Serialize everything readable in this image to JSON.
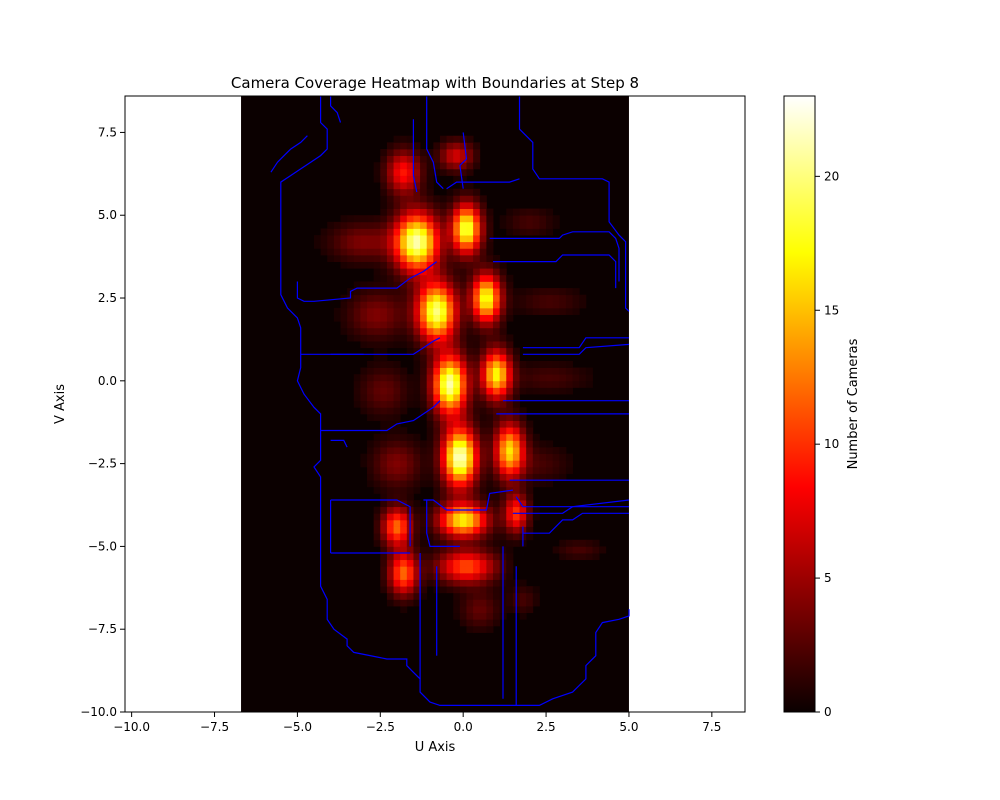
{
  "chart_data": {
    "type": "heatmap",
    "title": "Camera Coverage Heatmap with Boundaries at Step 8",
    "xlabel": "U Axis",
    "ylabel": "V Axis",
    "xlim": [
      -10.2,
      8.5
    ],
    "ylim": [
      -10.0,
      8.6
    ],
    "xticks": [
      -10.0,
      -7.5,
      -5.0,
      -2.5,
      0.0,
      2.5,
      5.0,
      7.5
    ],
    "yticks": [
      -10.0,
      -7.5,
      -5.0,
      -2.5,
      0.0,
      2.5,
      5.0,
      7.5
    ],
    "xtick_labels": [
      "−10.0",
      "−7.5",
      "−5.0",
      "−2.5",
      "0.0",
      "2.5",
      "5.0",
      "7.5"
    ],
    "ytick_labels": [
      "−10.0",
      "−7.5",
      "−5.0",
      "−2.5",
      "0.0",
      "2.5",
      "5.0",
      "7.5"
    ],
    "grid": false,
    "colormap": "hot",
    "colorbar": {
      "label": "Number of Cameras",
      "min": 0,
      "max": 23,
      "ticks": [
        0,
        5,
        10,
        15,
        20
      ],
      "tick_labels": [
        "0",
        "5",
        "10",
        "15",
        "20"
      ]
    },
    "heatmap_extent": {
      "u": [
        -6.7,
        5.0
      ],
      "v": [
        -10.0,
        8.6
      ]
    },
    "cell_size": 0.2,
    "hotspots": [
      {
        "u": -1.4,
        "v": 4.2,
        "peak": 21,
        "su": 0.45,
        "sv": 0.6
      },
      {
        "u": -1.8,
        "v": 6.3,
        "peak": 9,
        "su": 0.35,
        "sv": 0.45
      },
      {
        "u": -0.2,
        "v": 6.8,
        "peak": 7,
        "su": 0.35,
        "sv": 0.3
      },
      {
        "u": 0.1,
        "v": 4.6,
        "peak": 19,
        "su": 0.3,
        "sv": 0.5
      },
      {
        "u": -0.8,
        "v": 2.1,
        "peak": 20,
        "su": 0.4,
        "sv": 0.6
      },
      {
        "u": 0.7,
        "v": 2.5,
        "peak": 18,
        "su": 0.3,
        "sv": 0.5
      },
      {
        "u": -0.4,
        "v": -0.1,
        "peak": 21,
        "su": 0.35,
        "sv": 0.6
      },
      {
        "u": 1.0,
        "v": 0.2,
        "peak": 17,
        "su": 0.3,
        "sv": 0.5
      },
      {
        "u": -0.1,
        "v": -2.3,
        "peak": 22,
        "su": 0.35,
        "sv": 0.6
      },
      {
        "u": 1.4,
        "v": -2.1,
        "peak": 16,
        "su": 0.3,
        "sv": 0.55
      },
      {
        "u": 0.0,
        "v": -4.2,
        "peak": 17,
        "su": 0.5,
        "sv": 0.35
      },
      {
        "u": -2.0,
        "v": -4.4,
        "peak": 12,
        "su": 0.3,
        "sv": 0.4
      },
      {
        "u": 1.6,
        "v": -4.0,
        "peak": 10,
        "su": 0.25,
        "sv": 0.4
      },
      {
        "u": -1.8,
        "v": -5.8,
        "peak": 12,
        "su": 0.3,
        "sv": 0.45
      },
      {
        "u": 0.1,
        "v": -5.6,
        "peak": 11,
        "su": 0.6,
        "sv": 0.35
      },
      {
        "u": -3.0,
        "v": 4.2,
        "peak": 4,
        "su": 0.7,
        "sv": 0.4
      },
      {
        "u": -2.6,
        "v": 2.0,
        "peak": 4,
        "su": 0.6,
        "sv": 0.5
      },
      {
        "u": -2.4,
        "v": -0.3,
        "peak": 3,
        "su": 0.5,
        "sv": 0.5
      },
      {
        "u": -2.0,
        "v": -2.5,
        "peak": 4,
        "su": 0.5,
        "sv": 0.5
      },
      {
        "u": 2.6,
        "v": 0.1,
        "peak": 2,
        "su": 0.8,
        "sv": 0.3
      },
      {
        "u": 2.0,
        "v": 4.8,
        "peak": 2,
        "su": 0.5,
        "sv": 0.3
      },
      {
        "u": 2.6,
        "v": 2.4,
        "peak": 2,
        "su": 0.7,
        "sv": 0.3
      },
      {
        "u": 2.3,
        "v": -2.5,
        "peak": 2,
        "su": 0.6,
        "sv": 0.4
      },
      {
        "u": 0.5,
        "v": -6.9,
        "peak": 3,
        "su": 0.4,
        "sv": 0.4
      },
      {
        "u": 1.8,
        "v": -6.6,
        "peak": 2,
        "su": 0.3,
        "sv": 0.3
      },
      {
        "u": 3.5,
        "v": -5.1,
        "peak": 2,
        "su": 0.5,
        "sv": 0.2
      }
    ],
    "boundary_color": "#0000ff",
    "boundaries": [
      [
        [
          -4.3,
          8.6
        ],
        [
          -4.3,
          7.8
        ],
        [
          -4.1,
          7.6
        ],
        [
          -4.1,
          7.0
        ],
        [
          -4.3,
          6.8
        ],
        [
          -4.6,
          6.6
        ],
        [
          -4.9,
          6.4
        ],
        [
          -5.2,
          6.2
        ],
        [
          -5.5,
          6.0
        ],
        [
          -5.5,
          2.6
        ],
        [
          -5.3,
          2.2
        ],
        [
          -5.0,
          1.9
        ],
        [
          -4.9,
          1.6
        ],
        [
          -4.9,
          0.4
        ],
        [
          -5.0,
          0.0
        ],
        [
          -4.8,
          -0.4
        ],
        [
          -4.5,
          -0.8
        ],
        [
          -4.3,
          -1.0
        ],
        [
          -4.3,
          -2.4
        ],
        [
          -4.5,
          -2.6
        ],
        [
          -4.3,
          -2.9
        ],
        [
          -4.3,
          -6.2
        ],
        [
          -4.1,
          -6.6
        ],
        [
          -4.1,
          -7.2
        ],
        [
          -3.9,
          -7.5
        ],
        [
          -3.5,
          -7.8
        ],
        [
          -3.5,
          -8.0
        ],
        [
          -3.3,
          -8.2
        ],
        [
          -2.3,
          -8.4
        ],
        [
          -1.7,
          -8.4
        ],
        [
          -1.7,
          -8.6
        ],
        [
          -1.5,
          -8.8
        ],
        [
          -1.3,
          -9.0
        ],
        [
          -1.3,
          -9.4
        ],
        [
          -1.0,
          -9.7
        ],
        [
          -0.7,
          -9.8
        ],
        [
          2.3,
          -9.8
        ],
        [
          2.7,
          -9.6
        ],
        [
          3.3,
          -9.4
        ],
        [
          3.5,
          -9.2
        ],
        [
          3.7,
          -9.0
        ],
        [
          3.7,
          -8.6
        ],
        [
          4.0,
          -8.3
        ],
        [
          4.0,
          -7.6
        ],
        [
          4.2,
          -7.3
        ],
        [
          4.7,
          -7.2
        ],
        [
          5.0,
          -7.1
        ],
        [
          5.0,
          -6.9
        ]
      ],
      [
        [
          -4.0,
          8.6
        ],
        [
          -4.0,
          8.3
        ],
        [
          -3.8,
          8.1
        ],
        [
          -3.7,
          7.8
        ]
      ],
      [
        [
          -4.7,
          7.4
        ],
        [
          -4.9,
          7.2
        ],
        [
          -5.2,
          7.0
        ],
        [
          -5.4,
          6.8
        ],
        [
          -5.6,
          6.6
        ],
        [
          -5.8,
          6.3
        ]
      ],
      [
        [
          -1.1,
          8.6
        ],
        [
          -1.1,
          7.0
        ],
        [
          -0.9,
          6.6
        ],
        [
          -0.8,
          6.0
        ],
        [
          -0.6,
          5.8
        ]
      ],
      [
        [
          1.7,
          8.6
        ],
        [
          1.7,
          7.6
        ],
        [
          2.1,
          7.2
        ],
        [
          2.1,
          6.4
        ],
        [
          2.3,
          6.1
        ],
        [
          4.2,
          6.1
        ],
        [
          4.4,
          6.0
        ],
        [
          4.4,
          4.8
        ],
        [
          4.7,
          4.4
        ],
        [
          4.9,
          4.2
        ],
        [
          4.9,
          2.2
        ],
        [
          5.0,
          2.1
        ]
      ],
      [
        [
          1.7,
          6.1
        ],
        [
          1.4,
          6.0
        ],
        [
          -0.2,
          6.0
        ],
        [
          -0.5,
          5.8
        ]
      ],
      [
        [
          -1.5,
          7.9
        ],
        [
          -1.5,
          6.2
        ],
        [
          -1.4,
          5.7
        ]
      ],
      [
        [
          0.0,
          7.5
        ],
        [
          0.1,
          6.7
        ],
        [
          -0.1,
          6.5
        ],
        [
          0.0,
          5.8
        ]
      ],
      [
        [
          -5.0,
          3.0
        ],
        [
          -5.0,
          2.5
        ],
        [
          -4.8,
          2.4
        ],
        [
          -4.5,
          2.4
        ],
        [
          -3.4,
          2.5
        ],
        [
          -3.4,
          2.7
        ],
        [
          -3.2,
          2.8
        ],
        [
          -2.0,
          2.8
        ],
        [
          -1.6,
          3.1
        ],
        [
          -1.2,
          3.3
        ],
        [
          -0.8,
          3.6
        ]
      ],
      [
        [
          0.9,
          3.6
        ],
        [
          2.8,
          3.6
        ],
        [
          3.0,
          3.8
        ],
        [
          4.4,
          3.8
        ],
        [
          4.6,
          3.6
        ],
        [
          4.6,
          2.8
        ]
      ],
      [
        [
          0.8,
          4.3
        ],
        [
          2.9,
          4.3
        ],
        [
          3.0,
          4.4
        ],
        [
          3.3,
          4.5
        ],
        [
          4.4,
          4.5
        ],
        [
          4.6,
          4.3
        ],
        [
          4.7,
          4.0
        ],
        [
          4.7,
          3.0
        ]
      ],
      [
        [
          -4.9,
          0.8
        ],
        [
          -1.5,
          0.8
        ],
        [
          -1.2,
          1.0
        ],
        [
          -0.9,
          1.2
        ],
        [
          -0.7,
          1.3
        ]
      ],
      [
        [
          -4.0,
          0.8
        ],
        [
          -3.0,
          0.8
        ]
      ],
      [
        [
          1.8,
          1.0
        ],
        [
          3.5,
          1.0
        ],
        [
          3.7,
          1.3
        ],
        [
          5.0,
          1.3
        ]
      ],
      [
        [
          1.8,
          0.8
        ],
        [
          3.5,
          0.8
        ],
        [
          3.7,
          1.0
        ],
        [
          5.0,
          1.1
        ]
      ],
      [
        [
          -4.3,
          -1.5
        ],
        [
          -2.3,
          -1.5
        ],
        [
          -2.0,
          -1.3
        ],
        [
          -1.5,
          -1.2
        ],
        [
          -0.9,
          -0.8
        ],
        [
          -0.7,
          -0.6
        ]
      ],
      [
        [
          1.2,
          -0.6
        ],
        [
          3.5,
          -0.6
        ],
        [
          5.0,
          -0.6
        ]
      ],
      [
        [
          1.0,
          -1.0
        ],
        [
          3.0,
          -1.0
        ],
        [
          5.0,
          -1.0
        ]
      ],
      [
        [
          -4.0,
          -1.8
        ],
        [
          -3.6,
          -1.8
        ],
        [
          -3.5,
          -2.0
        ]
      ],
      [
        [
          1.4,
          -3.0
        ],
        [
          5.0,
          -3.0
        ]
      ],
      [
        [
          -4.0,
          -3.6
        ],
        [
          -3.8,
          -3.6
        ],
        [
          -2.0,
          -3.6
        ],
        [
          -1.6,
          -3.8
        ],
        [
          -1.6,
          -5.0
        ]
      ],
      [
        [
          -1.2,
          -3.6
        ],
        [
          -0.9,
          -3.6
        ],
        [
          -0.5,
          -3.9
        ],
        [
          0.7,
          -3.9
        ],
        [
          0.8,
          -3.4
        ],
        [
          1.5,
          -3.3
        ]
      ],
      [
        [
          1.6,
          -3.5
        ],
        [
          1.8,
          -3.8
        ],
        [
          3.6,
          -3.8
        ],
        [
          5.0,
          -3.8
        ]
      ],
      [
        [
          1.5,
          -4.0
        ],
        [
          3.0,
          -4.0
        ],
        [
          3.3,
          -3.8
        ],
        [
          5.0,
          -3.6
        ]
      ],
      [
        [
          1.8,
          -4.6
        ],
        [
          2.6,
          -4.6
        ],
        [
          3.0,
          -4.2
        ],
        [
          3.3,
          -4.2
        ],
        [
          3.6,
          -4.0
        ],
        [
          4.0,
          -4.0
        ],
        [
          5.0,
          -4.0
        ]
      ],
      [
        [
          -4.0,
          -5.2
        ],
        [
          -2.6,
          -5.2
        ],
        [
          -1.6,
          -5.2
        ]
      ],
      [
        [
          -1.1,
          -3.6
        ],
        [
          -1.1,
          -4.6
        ],
        [
          -1.0,
          -5.0
        ],
        [
          -0.1,
          -5.0
        ]
      ],
      [
        [
          1.8,
          -4.4
        ],
        [
          1.8,
          -5.0
        ]
      ],
      [
        [
          -1.3,
          -5.2
        ],
        [
          -1.3,
          -9.0
        ]
      ],
      [
        [
          -0.8,
          -5.6
        ],
        [
          -0.8,
          -7.5
        ],
        [
          -0.8,
          -8.3
        ]
      ],
      [
        [
          1.2,
          -5.0
        ],
        [
          1.2,
          -9.6
        ]
      ],
      [
        [
          1.6,
          -5.6
        ],
        [
          1.6,
          -9.8
        ]
      ],
      [
        [
          -4.0,
          -3.6
        ],
        [
          -4.0,
          -5.2
        ]
      ]
    ]
  }
}
